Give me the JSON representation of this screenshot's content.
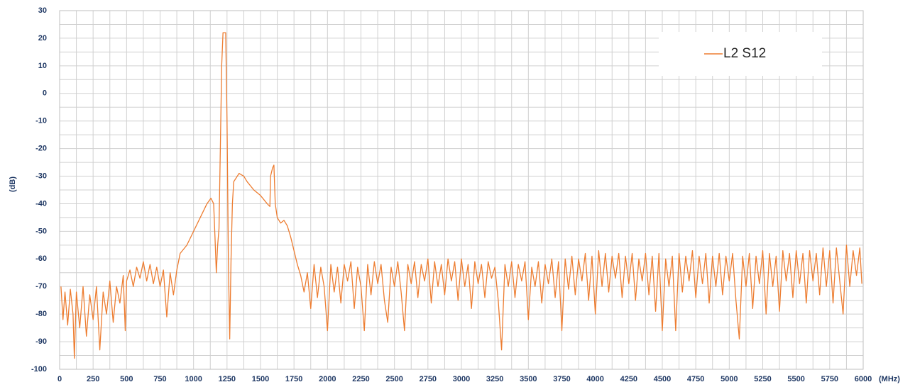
{
  "chart_data": {
    "type": "line",
    "ylabel": "(dB)",
    "xlabel": "(MHz)",
    "xlim": [
      0,
      6000
    ],
    "ylim": [
      -100,
      30
    ],
    "xticks": [
      0,
      250,
      500,
      750,
      1000,
      1250,
      1500,
      1750,
      2000,
      2250,
      2500,
      2750,
      3000,
      3250,
      3500,
      3750,
      4000,
      4250,
      4500,
      4750,
      5000,
      5250,
      5500,
      5750,
      6000
    ],
    "yticks": [
      -100,
      -90,
      -80,
      -70,
      -60,
      -50,
      -40,
      -30,
      -20,
      -10,
      0,
      10,
      20,
      30
    ],
    "grid": true,
    "minor_grid": true,
    "legend": "upper right",
    "x": [
      10,
      25,
      40,
      60,
      80,
      100,
      110,
      125,
      150,
      175,
      200,
      225,
      250,
      275,
      300,
      325,
      350,
      375,
      400,
      425,
      450,
      475,
      490,
      500,
      525,
      550,
      575,
      600,
      625,
      650,
      675,
      700,
      725,
      750,
      775,
      800,
      825,
      850,
      875,
      900,
      950,
      1000,
      1050,
      1100,
      1130,
      1150,
      1160,
      1170,
      1180,
      1190,
      1200,
      1210,
      1220,
      1240,
      1250,
      1260,
      1270,
      1280,
      1290,
      1300,
      1340,
      1375,
      1400,
      1450,
      1500,
      1550,
      1570,
      1575,
      1590,
      1600,
      1610,
      1625,
      1650,
      1675,
      1700,
      1725,
      1750,
      1775,
      1800,
      1825,
      1850,
      1875,
      1900,
      1925,
      1950,
      1975,
      2000,
      2025,
      2050,
      2075,
      2100,
      2125,
      2150,
      2175,
      2200,
      2225,
      2250,
      2275,
      2300,
      2325,
      2350,
      2375,
      2400,
      2425,
      2450,
      2475,
      2500,
      2525,
      2550,
      2575,
      2600,
      2625,
      2650,
      2675,
      2700,
      2725,
      2750,
      2775,
      2800,
      2825,
      2850,
      2875,
      2900,
      2925,
      2950,
      2975,
      3000,
      3025,
      3050,
      3075,
      3100,
      3125,
      3150,
      3175,
      3200,
      3225,
      3250,
      3275,
      3300,
      3325,
      3350,
      3375,
      3400,
      3425,
      3450,
      3475,
      3500,
      3525,
      3550,
      3575,
      3600,
      3625,
      3650,
      3675,
      3700,
      3725,
      3750,
      3775,
      3800,
      3825,
      3850,
      3875,
      3900,
      3925,
      3950,
      3975,
      4000,
      4025,
      4050,
      4075,
      4100,
      4125,
      4150,
      4175,
      4200,
      4225,
      4250,
      4275,
      4300,
      4325,
      4350,
      4375,
      4400,
      4425,
      4450,
      4475,
      4500,
      4525,
      4550,
      4575,
      4600,
      4625,
      4650,
      4675,
      4700,
      4725,
      4750,
      4775,
      4800,
      4825,
      4850,
      4875,
      4900,
      4925,
      4950,
      4975,
      5000,
      5025,
      5050,
      5075,
      5100,
      5125,
      5150,
      5175,
      5200,
      5225,
      5250,
      5275,
      5300,
      5325,
      5350,
      5375,
      5400,
      5425,
      5450,
      5475,
      5500,
      5525,
      5550,
      5575,
      5600,
      5625,
      5650,
      5675,
      5700,
      5725,
      5750,
      5775,
      5800,
      5825,
      5850,
      5875,
      5900,
      5925,
      5950,
      5975,
      5990
    ],
    "series": [
      {
        "name": "L2 S12",
        "color": "#ed7d31",
        "values": [
          -70,
          -82,
          -72,
          -84,
          -71,
          -80,
          -96,
          -72,
          -85,
          -70,
          -88,
          -73,
          -82,
          -70,
          -93,
          -72,
          -80,
          -68,
          -83,
          -70,
          -76,
          -66,
          -86,
          -68,
          -64,
          -70,
          -63,
          -67,
          -61,
          -68,
          -62,
          -69,
          -63,
          -70,
          -64,
          -81,
          -65,
          -73,
          -64,
          -58,
          -55,
          -50,
          -45,
          -40,
          -38,
          -40,
          -52,
          -65,
          -55,
          -49,
          -20,
          10,
          22,
          22,
          -10,
          -60,
          -89,
          -60,
          -40,
          -32,
          -29,
          -30,
          -32,
          -35,
          -37,
          -40,
          -41,
          -30,
          -27,
          -26,
          -40,
          -45,
          -47,
          -46,
          -48,
          -52,
          -57,
          -62,
          -66,
          -72,
          -65,
          -78,
          -62,
          -74,
          -63,
          -70,
          -86,
          -62,
          -72,
          -63,
          -76,
          -62,
          -68,
          -61,
          -78,
          -63,
          -70,
          -86,
          -62,
          -73,
          -61,
          -69,
          -62,
          -75,
          -83,
          -63,
          -70,
          -61,
          -72,
          -86,
          -62,
          -69,
          -61,
          -74,
          -62,
          -68,
          -60,
          -76,
          -61,
          -70,
          -62,
          -73,
          -60,
          -68,
          -61,
          -75,
          -60,
          -70,
          -62,
          -78,
          -61,
          -69,
          -62,
          -74,
          -61,
          -67,
          -63,
          -75,
          -93,
          -62,
          -70,
          -61,
          -74,
          -62,
          -68,
          -61,
          -82,
          -63,
          -70,
          -61,
          -76,
          -62,
          -69,
          -60,
          -74,
          -61,
          -86,
          -60,
          -71,
          -59,
          -73,
          -60,
          -68,
          -58,
          -75,
          -59,
          -80,
          -57,
          -70,
          -58,
          -72,
          -59,
          -67,
          -58,
          -74,
          -59,
          -69,
          -58,
          -75,
          -60,
          -68,
          -58,
          -73,
          -59,
          -79,
          -58,
          -86,
          -60,
          -70,
          -59,
          -86,
          -58,
          -72,
          -59,
          -68,
          -57,
          -74,
          -59,
          -69,
          -58,
          -76,
          -59,
          -70,
          -58,
          -73,
          -59,
          -68,
          -58,
          -75,
          -89,
          -59,
          -70,
          -58,
          -78,
          -59,
          -69,
          -57,
          -80,
          -58,
          -70,
          -59,
          -79,
          -57,
          -68,
          -58,
          -74,
          -57,
          -69,
          -58,
          -76,
          -57,
          -68,
          -58,
          -73,
          -56,
          -70,
          -57,
          -76,
          -56,
          -68,
          -80,
          -55,
          -70,
          -57,
          -66,
          -56,
          -69
        ]
      }
    ]
  }
}
